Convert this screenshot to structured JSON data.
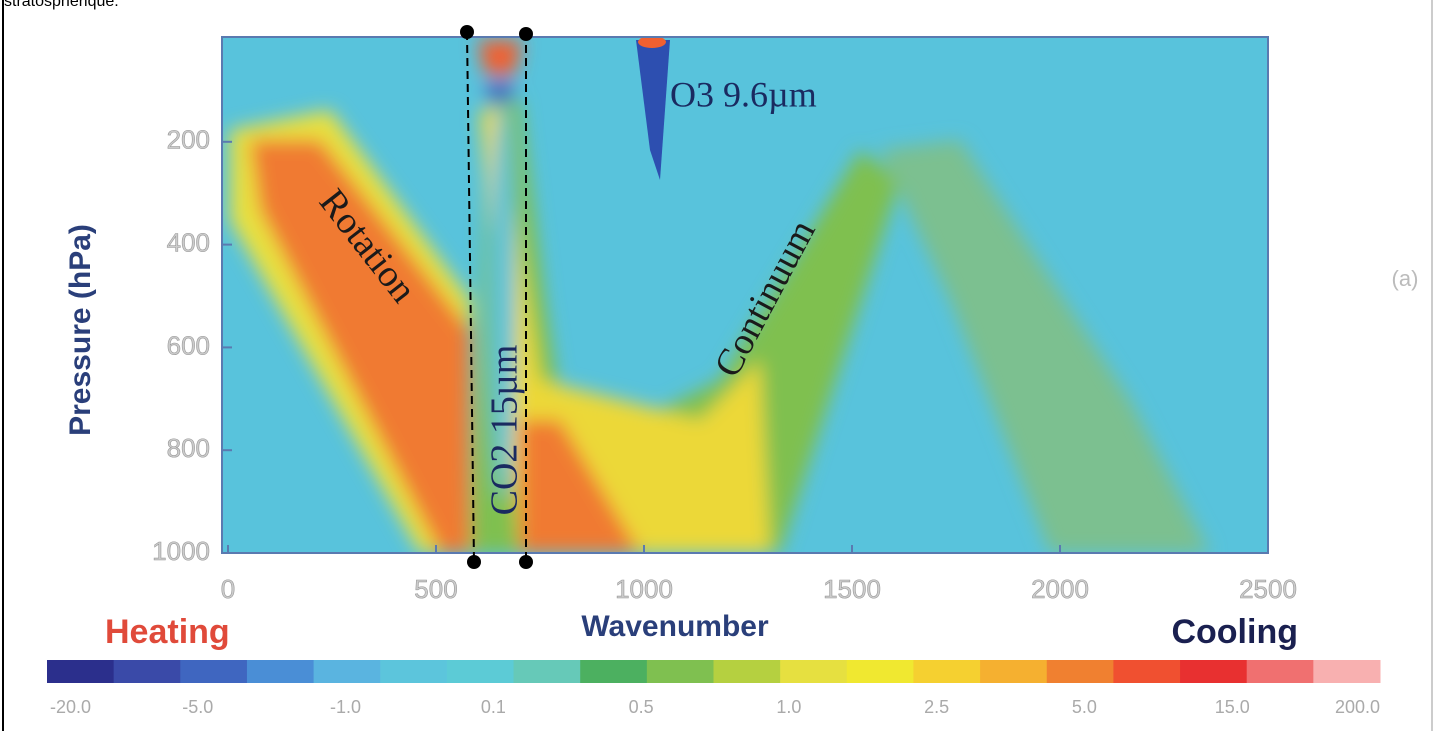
{
  "header_text": "stratosphérique.",
  "chart_data": {
    "type": "contour",
    "x_label": "Wavenumber",
    "y_label": "Pressure (hPa)",
    "xlim": [
      0,
      2500
    ],
    "xticks": [
      0,
      500,
      1000,
      1500,
      2000,
      2500
    ],
    "ylim": [
      1000,
      0
    ],
    "yticks": [
      200,
      400,
      600,
      800,
      1000
    ],
    "annotations": [
      "Rotation",
      "CO2 15µm",
      "Continuum",
      "O3 9.6µm"
    ],
    "panel_label": "(a)",
    "colorbar": {
      "left_label": "Heating",
      "right_label": "Cooling",
      "labels": [
        "-20.0",
        "-5.0",
        "-1.0",
        "0.1",
        "0.5",
        "1.0",
        "2.5",
        "5.0",
        "15.0",
        "200.0"
      ],
      "colors": [
        "#2b2f8c",
        "#3a4aa8",
        "#3f66c0",
        "#4a8ed6",
        "#5ab4e0",
        "#5cc5dc",
        "#5ccbd6",
        "#66c9b8",
        "#4cb060",
        "#7fc050",
        "#b5d040",
        "#e6e040",
        "#f0e830",
        "#f5d030",
        "#f5b030",
        "#f08030",
        "#f05030",
        "#e83030",
        "#f07070",
        "#f8b0b0"
      ]
    }
  }
}
